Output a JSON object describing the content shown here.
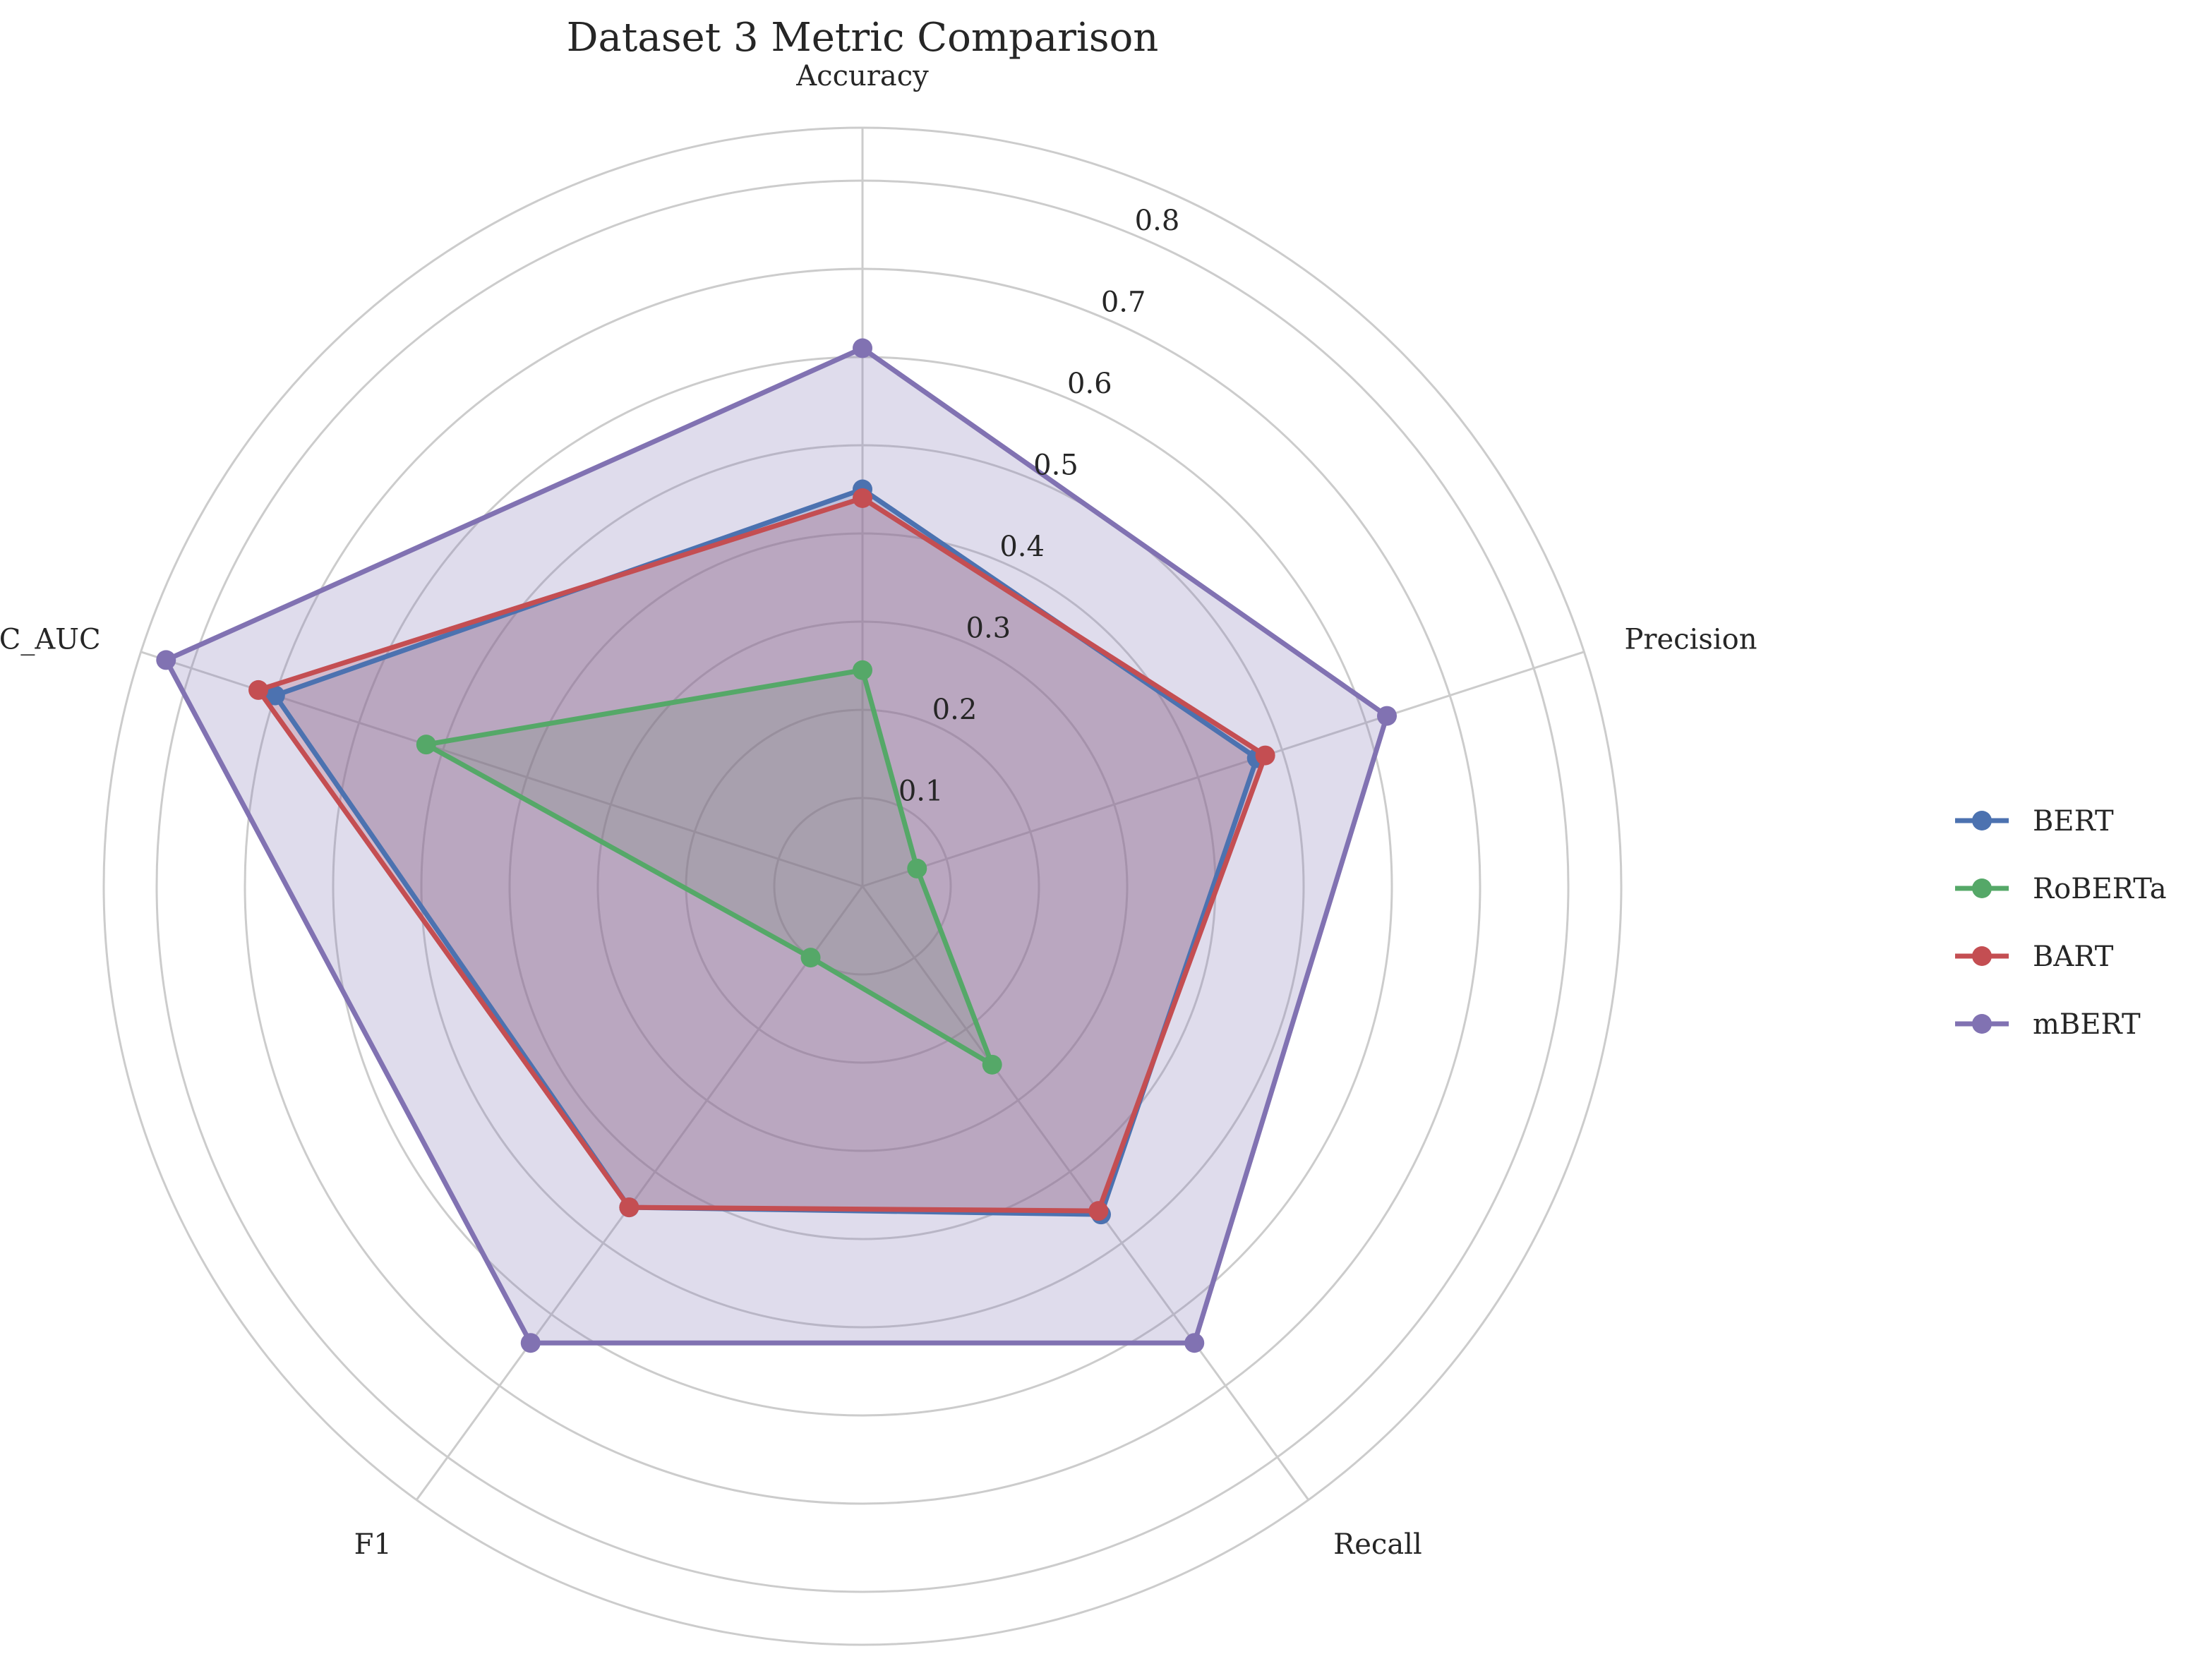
{
  "chart_data": {
    "type": "radar",
    "title": "Dataset 3 Metric Comparison",
    "axes": [
      "Accuracy",
      "Precision",
      "Recall",
      "F1",
      "ROC_AUC"
    ],
    "radial_ticks": [
      "0.1",
      "0.2",
      "0.3",
      "0.4",
      "0.5",
      "0.6",
      "0.7",
      "0.8"
    ],
    "rlim": [
      0,
      0.8
    ],
    "grid": true,
    "legend_position": "right",
    "series": [
      {
        "name": "BERT",
        "color": "#4c72b0",
        "values": [
          0.45,
          0.47,
          0.46,
          0.45,
          0.7
        ],
        "filled": false
      },
      {
        "name": "RoBERTa",
        "color": "#55a868",
        "values": [
          0.245,
          0.065,
          0.25,
          0.1,
          0.52
        ],
        "filled": false
      },
      {
        "name": "BART",
        "color": "#c44e52",
        "values": [
          0.44,
          0.48,
          0.455,
          0.45,
          0.72
        ],
        "filled": false
      },
      {
        "name": "mBERT",
        "color": "#8172b2",
        "values": [
          0.61,
          0.625,
          0.64,
          0.64,
          0.83
        ],
        "filled": true
      }
    ]
  }
}
